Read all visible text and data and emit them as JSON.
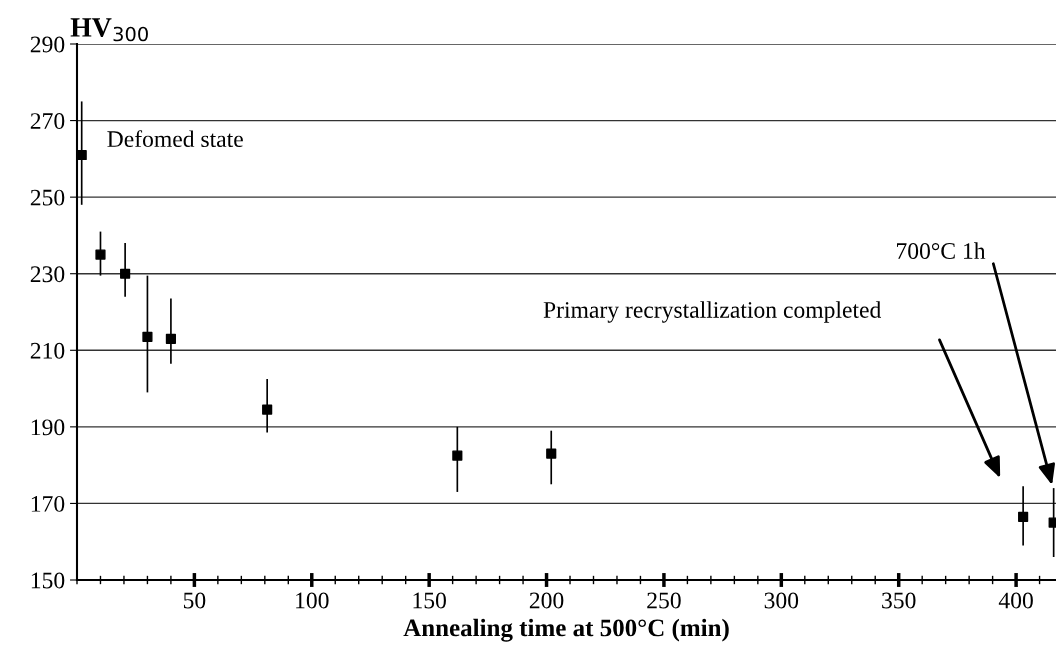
{
  "chart_data": {
    "type": "scatter",
    "ylabel": "HV$_{300}$",
    "xlabel": "Annealing time at 500°C (min)",
    "x": [
      2,
      10,
      20.5,
      30,
      40,
      81,
      162,
      202,
      403,
      416
    ],
    "values": [
      261,
      235,
      230,
      213.5,
      213,
      194.5,
      182.5,
      183,
      166.5,
      165
    ],
    "errors": [
      [
        248,
        275
      ],
      [
        229.5,
        241
      ],
      [
        224,
        238
      ],
      [
        199,
        229.5
      ],
      [
        206.5,
        223.5
      ],
      [
        188.5,
        202.5
      ],
      [
        173,
        190
      ],
      [
        175,
        189
      ],
      [
        159,
        174.5
      ],
      [
        156,
        174
      ]
    ],
    "color": "#000000",
    "marker": "square",
    "xlim": [
      0,
      417
    ],
    "xticks": [
      50,
      100,
      150,
      200,
      250,
      300,
      350,
      400
    ],
    "ylim": [
      150,
      290
    ],
    "yticks": [
      150,
      170,
      190,
      210,
      230,
      250,
      270,
      290
    ],
    "grid": "y",
    "annotations": [
      {
        "text": "Defomed state",
        "x": 2,
        "y": 261
      },
      "Primary recrystallization completed",
      "700°C 1h"
    ]
  }
}
